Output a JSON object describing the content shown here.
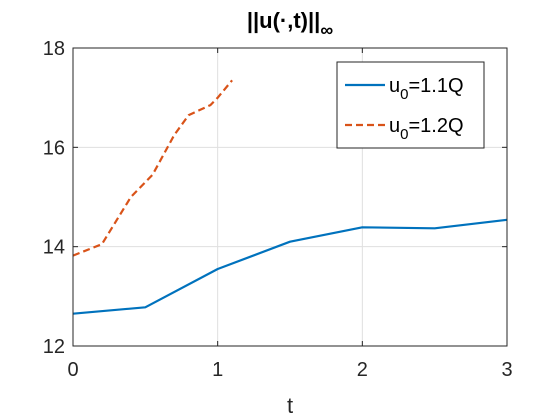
{
  "chart_data": {
    "type": "line",
    "title": "||u(·,t)||",
    "title_subscript": "∞",
    "xlabel": "t",
    "ylabel": "",
    "xlim": [
      0,
      3
    ],
    "ylim": [
      12,
      18
    ],
    "xticks": [
      0,
      1,
      2,
      3
    ],
    "yticks": [
      12,
      14,
      16,
      18
    ],
    "grid": true,
    "legend_position": "top-right",
    "series": [
      {
        "name": "u0=1.1Q",
        "name_parts": {
          "base": "u",
          "sub": "0",
          "rest": "=1.1Q"
        },
        "color": "#0072BD",
        "style": "solid",
        "x": [
          0,
          0.5,
          1,
          1.5,
          2,
          2.5,
          3
        ],
        "y": [
          12.65,
          12.78,
          13.55,
          14.1,
          14.39,
          14.37,
          14.54
        ]
      },
      {
        "name": "u0=1.2Q",
        "name_parts": {
          "base": "u",
          "sub": "0",
          "rest": "=1.2Q"
        },
        "color": "#D95319",
        "style": "dashed",
        "x": [
          0,
          0.2,
          0.4,
          0.55,
          0.7,
          0.8,
          0.95,
          1.0,
          1.1
        ],
        "y": [
          13.82,
          14.05,
          15.0,
          15.45,
          16.25,
          16.65,
          16.85,
          17.0,
          17.35
        ]
      }
    ]
  }
}
